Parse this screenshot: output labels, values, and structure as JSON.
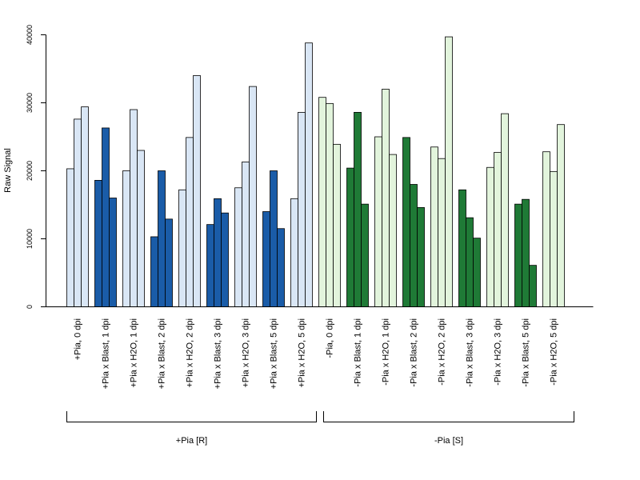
{
  "chart_data": {
    "type": "bar",
    "ylabel": "Raw Signal",
    "ylim": [
      0,
      40000
    ],
    "yticks": [
      0,
      10000,
      20000,
      30000,
      40000
    ],
    "colors": {
      "light_blue": "#d9e6f5",
      "dark_blue": "#1a5ca8",
      "light_green": "#e2f4dc",
      "dark_green": "#1f7a36"
    },
    "groups": [
      {
        "label": "+Pia, 0 dpi",
        "color": "light_blue",
        "values": [
          20300,
          27600,
          29400
        ]
      },
      {
        "label": "+Pia x Blast, 1 dpi",
        "color": "dark_blue",
        "values": [
          18600,
          26300,
          16000
        ]
      },
      {
        "label": "+Pia x H2O, 1 dpi",
        "color": "light_blue",
        "values": [
          20000,
          29000,
          23000
        ]
      },
      {
        "label": "+Pia x Blast, 2 dpi",
        "color": "dark_blue",
        "values": [
          10300,
          20000,
          12900
        ]
      },
      {
        "label": "+Pia x H2O, 2 dpi",
        "color": "light_blue",
        "values": [
          17200,
          24900,
          34000
        ]
      },
      {
        "label": "+Pia x Blast, 3 dpi",
        "color": "dark_blue",
        "values": [
          12100,
          15900,
          13800
        ]
      },
      {
        "label": "+Pia x H2O, 3 dpi",
        "color": "light_blue",
        "values": [
          17500,
          21300,
          32400
        ]
      },
      {
        "label": "+Pia x Blast, 5 dpi",
        "color": "dark_blue",
        "values": [
          14000,
          20000,
          11500
        ]
      },
      {
        "label": "+Pia x H2O, 5 dpi",
        "color": "light_blue",
        "values": [
          15900,
          28600,
          38800
        ]
      },
      {
        "label": "-Pia, 0 dpi",
        "color": "light_green",
        "values": [
          30800,
          29900,
          23900
        ]
      },
      {
        "label": "-Pia x Blast, 1 dpi",
        "color": "dark_green",
        "values": [
          20400,
          28600,
          15100
        ]
      },
      {
        "label": "-Pia x H2O, 1 dpi",
        "color": "light_green",
        "values": [
          25000,
          32000,
          22400
        ]
      },
      {
        "label": "-Pia x Blast, 2 dpi",
        "color": "dark_green",
        "values": [
          24900,
          18000,
          14600
        ]
      },
      {
        "label": "-Pia x H2O, 2 dpi",
        "color": "light_green",
        "values": [
          23500,
          21800,
          39700
        ]
      },
      {
        "label": "-Pia x Blast, 3 dpi",
        "color": "dark_green",
        "values": [
          17200,
          13100,
          10100
        ]
      },
      {
        "label": "-Pia x H2O, 3 dpi",
        "color": "light_green",
        "values": [
          20500,
          22700,
          28400
        ]
      },
      {
        "label": "-Pia x Blast, 5 dpi",
        "color": "dark_green",
        "values": [
          15100,
          15800,
          6100
        ]
      },
      {
        "label": "-Pia x H2O, 5 dpi",
        "color": "light_green",
        "values": [
          22800,
          19900,
          26800
        ]
      }
    ],
    "brackets": [
      {
        "label": "+Pia [R]",
        "first_group": 0,
        "last_group": 8
      },
      {
        "label": "-Pia [S]",
        "first_group": 9,
        "last_group": 17
      }
    ]
  }
}
